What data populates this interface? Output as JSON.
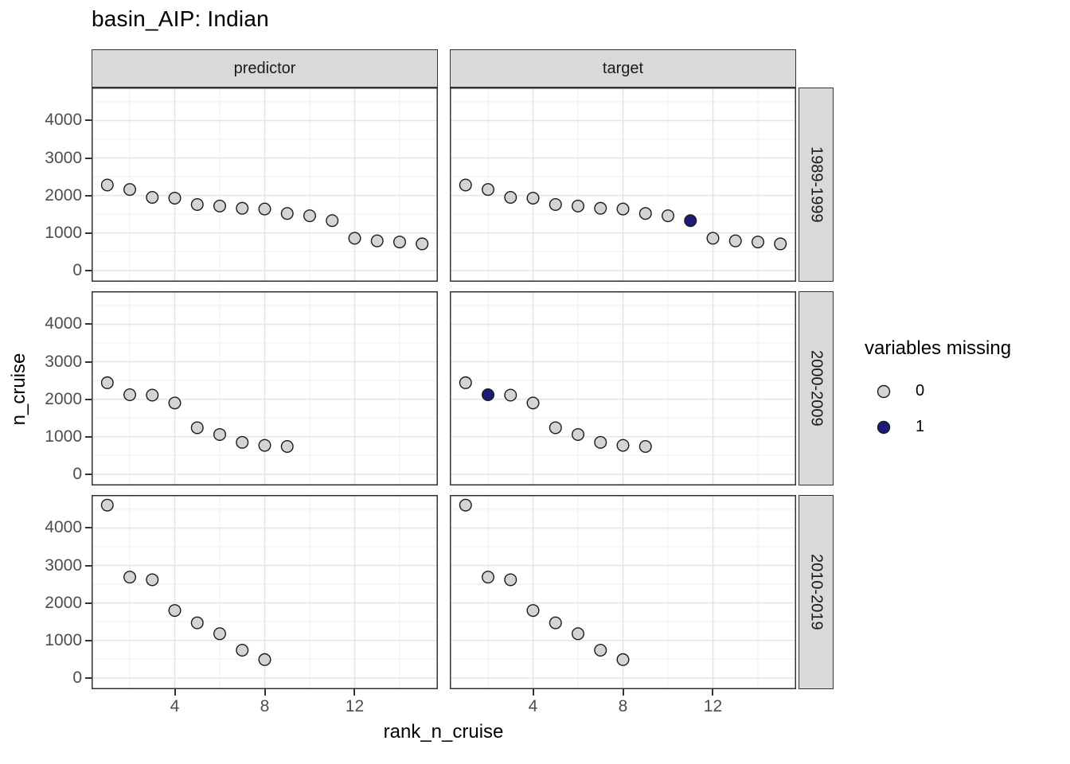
{
  "colors": {
    "point_fill_0": "#d4d4d4",
    "point_fill_1": "#1c1c78",
    "point_stroke": "#1a1a1a",
    "strip_bg": "#d9d9d9",
    "panel_border": "#333333",
    "grid_major": "#e4e4e4",
    "grid_minor": "#f2f2f2",
    "tick_label": "#4d4d4d",
    "tick_mark": "#333333"
  },
  "chart_data": {
    "type": "scatter",
    "title": "basin_AIP: Indian",
    "xlabel": "rank_n_cruise",
    "ylabel": "n_cruise",
    "facet_cols": [
      "predictor",
      "target"
    ],
    "facet_rows": [
      "1989-1999",
      "2000-2009",
      "2010-2019"
    ],
    "x_ticks": [
      4,
      8,
      12
    ],
    "y_ticks": [
      0,
      1000,
      2000,
      3000,
      4000
    ],
    "x_minor": [
      2,
      6,
      10,
      14
    ],
    "y_minor": [
      500,
      1500,
      2500,
      3500,
      4500
    ],
    "x_domain": [
      0.3,
      15.7
    ],
    "y_domain": [
      -300,
      4880
    ],
    "grid": true,
    "legend": {
      "title": "variables missing",
      "position": "right",
      "entries": [
        "0",
        "1"
      ]
    },
    "point_format": [
      "rank_n_cruise",
      "n_cruise",
      "variables_missing"
    ],
    "panels": [
      {
        "col": "predictor",
        "row": "1989-1999",
        "points": [
          [
            1,
            2280,
            0
          ],
          [
            2,
            2160,
            0
          ],
          [
            3,
            1950,
            0
          ],
          [
            4,
            1930,
            0
          ],
          [
            5,
            1760,
            0
          ],
          [
            6,
            1720,
            0
          ],
          [
            7,
            1660,
            0
          ],
          [
            8,
            1640,
            0
          ],
          [
            9,
            1520,
            0
          ],
          [
            10,
            1460,
            0
          ],
          [
            11,
            1330,
            0
          ],
          [
            12,
            860,
            0
          ],
          [
            13,
            790,
            0
          ],
          [
            14,
            760,
            0
          ],
          [
            15,
            710,
            0
          ]
        ]
      },
      {
        "col": "target",
        "row": "1989-1999",
        "points": [
          [
            1,
            2280,
            0
          ],
          [
            2,
            2160,
            0
          ],
          [
            3,
            1950,
            0
          ],
          [
            4,
            1930,
            0
          ],
          [
            5,
            1760,
            0
          ],
          [
            6,
            1720,
            0
          ],
          [
            7,
            1660,
            0
          ],
          [
            8,
            1640,
            0
          ],
          [
            9,
            1520,
            0
          ],
          [
            10,
            1460,
            0
          ],
          [
            11,
            1330,
            1
          ],
          [
            12,
            860,
            0
          ],
          [
            13,
            790,
            0
          ],
          [
            14,
            760,
            0
          ],
          [
            15,
            710,
            0
          ]
        ]
      },
      {
        "col": "predictor",
        "row": "2000-2009",
        "points": [
          [
            1,
            2440,
            0
          ],
          [
            2,
            2120,
            0
          ],
          [
            3,
            2110,
            0
          ],
          [
            4,
            1900,
            0
          ],
          [
            5,
            1240,
            0
          ],
          [
            6,
            1060,
            0
          ],
          [
            7,
            850,
            0
          ],
          [
            8,
            770,
            0
          ],
          [
            9,
            740,
            0
          ]
        ]
      },
      {
        "col": "target",
        "row": "2000-2009",
        "points": [
          [
            1,
            2440,
            0
          ],
          [
            2,
            2120,
            1
          ],
          [
            3,
            2110,
            0
          ],
          [
            4,
            1900,
            0
          ],
          [
            5,
            1240,
            0
          ],
          [
            6,
            1060,
            0
          ],
          [
            7,
            850,
            0
          ],
          [
            8,
            770,
            0
          ],
          [
            9,
            740,
            0
          ]
        ]
      },
      {
        "col": "predictor",
        "row": "2010-2019",
        "points": [
          [
            1,
            4610,
            0
          ],
          [
            2,
            2690,
            0
          ],
          [
            3,
            2620,
            0
          ],
          [
            4,
            1800,
            0
          ],
          [
            5,
            1470,
            0
          ],
          [
            6,
            1180,
            0
          ],
          [
            7,
            740,
            0
          ],
          [
            8,
            490,
            0
          ]
        ]
      },
      {
        "col": "target",
        "row": "2010-2019",
        "points": [
          [
            1,
            4610,
            0
          ],
          [
            2,
            2690,
            0
          ],
          [
            3,
            2620,
            0
          ],
          [
            4,
            1800,
            0
          ],
          [
            5,
            1470,
            0
          ],
          [
            6,
            1180,
            0
          ],
          [
            7,
            740,
            0
          ],
          [
            8,
            490,
            0
          ]
        ]
      }
    ]
  }
}
